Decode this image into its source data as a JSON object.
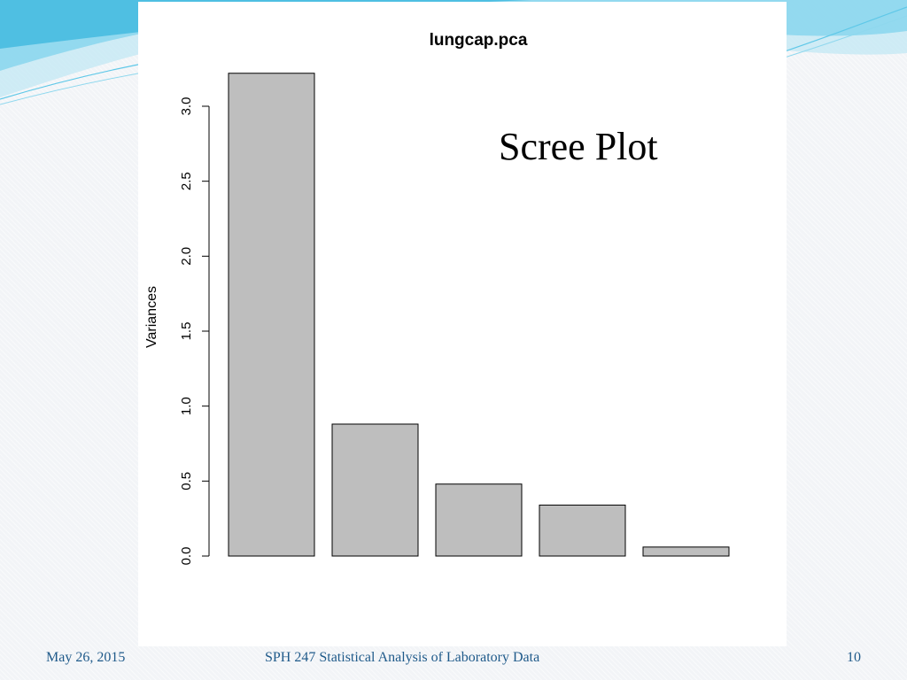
{
  "slide": {
    "annotation": "Scree Plot",
    "footer": {
      "date": "May 26, 2015",
      "course": "SPH 247 Statistical Analysis of Laboratory Data",
      "page": "10"
    }
  },
  "colors": {
    "bar_fill": "#bebebe",
    "bar_stroke": "#000000",
    "footer_text": "#1f5a8a",
    "wave": "#5fc8e8"
  },
  "chart_data": {
    "type": "bar",
    "title": "lungcap.pca",
    "xlabel": "",
    "ylabel": "Variances",
    "ylim": [
      0,
      3.0
    ],
    "yticks": [
      "0.0",
      "0.5",
      "1.0",
      "1.5",
      "2.0",
      "2.5",
      "3.0"
    ],
    "values": [
      3.22,
      0.88,
      0.48,
      0.34,
      0.06
    ],
    "grid": false,
    "legend": "none"
  }
}
